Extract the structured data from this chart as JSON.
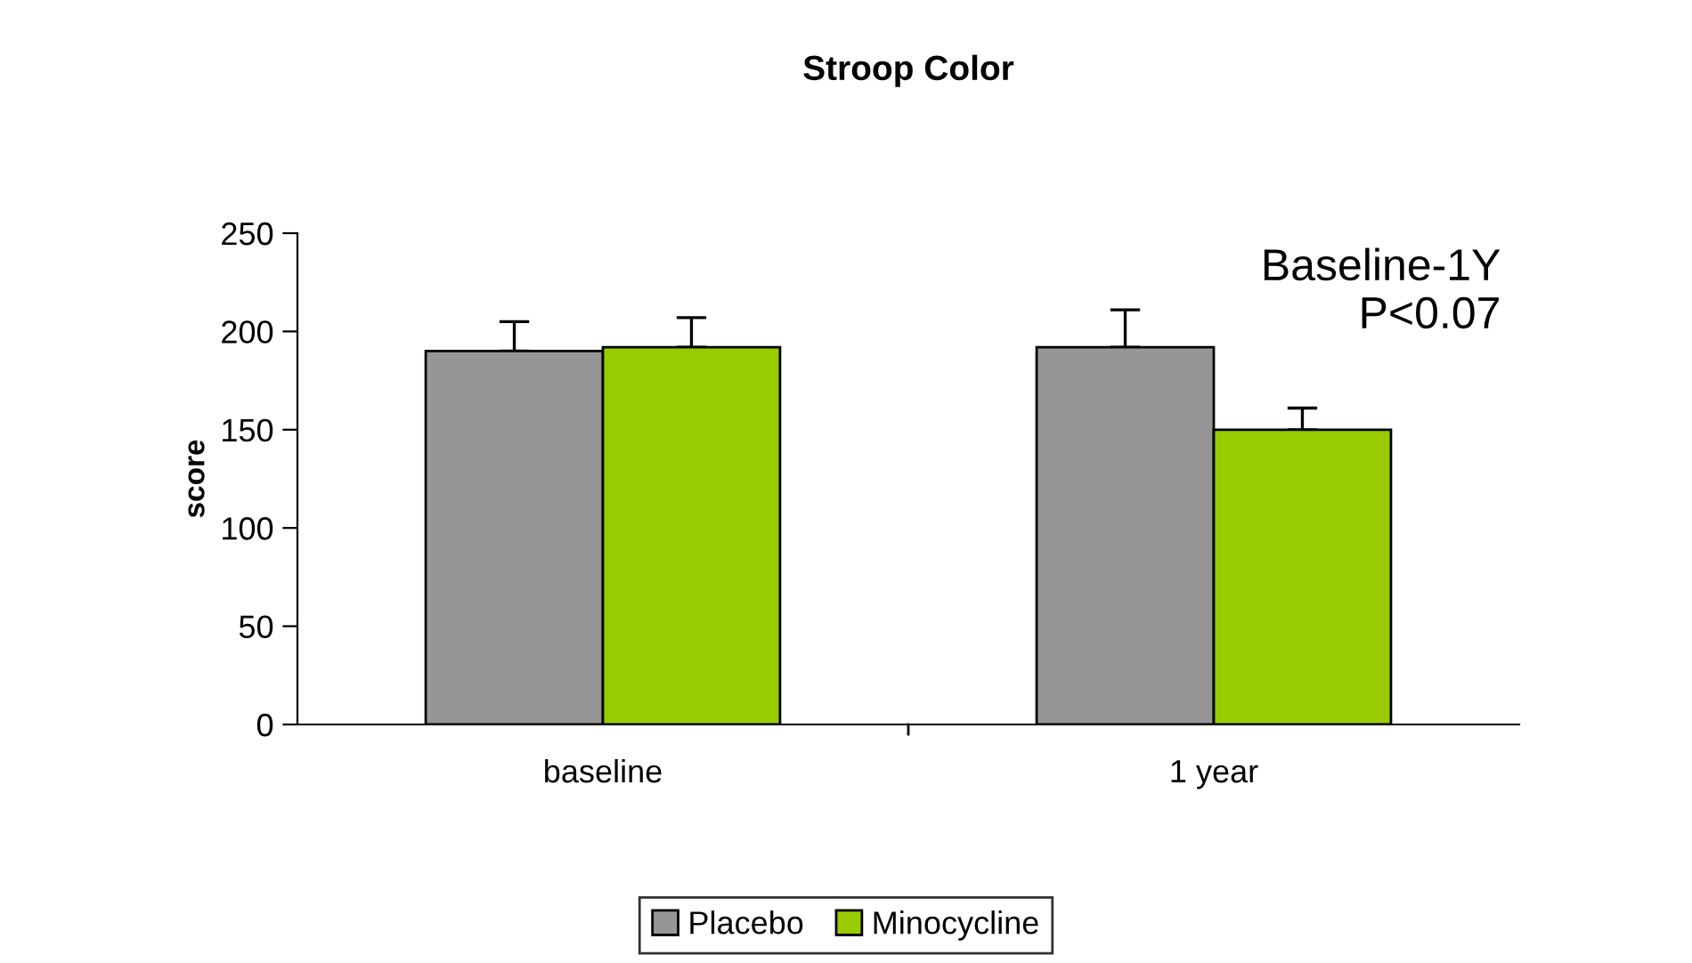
{
  "chart_data": {
    "type": "bar",
    "title": "Stroop Color",
    "ylabel": "score",
    "categories": [
      "baseline",
      "1 year"
    ],
    "series": [
      {
        "name": "Placebo",
        "color": "#969696",
        "values": [
          190,
          192
        ],
        "errors": [
          [
            190,
            205
          ],
          [
            192,
            211
          ]
        ]
      },
      {
        "name": "Minocycline",
        "color": "#99cc00",
        "values": [
          192,
          150
        ],
        "errors": [
          [
            192,
            207
          ],
          [
            150,
            161
          ]
        ]
      }
    ],
    "ylim": [
      0,
      250
    ],
    "yticks": [
      0,
      50,
      100,
      150,
      200,
      250
    ],
    "annotations": [
      "Baseline-1Y\nP<0.07"
    ],
    "grid": false,
    "legend": "bottom"
  }
}
